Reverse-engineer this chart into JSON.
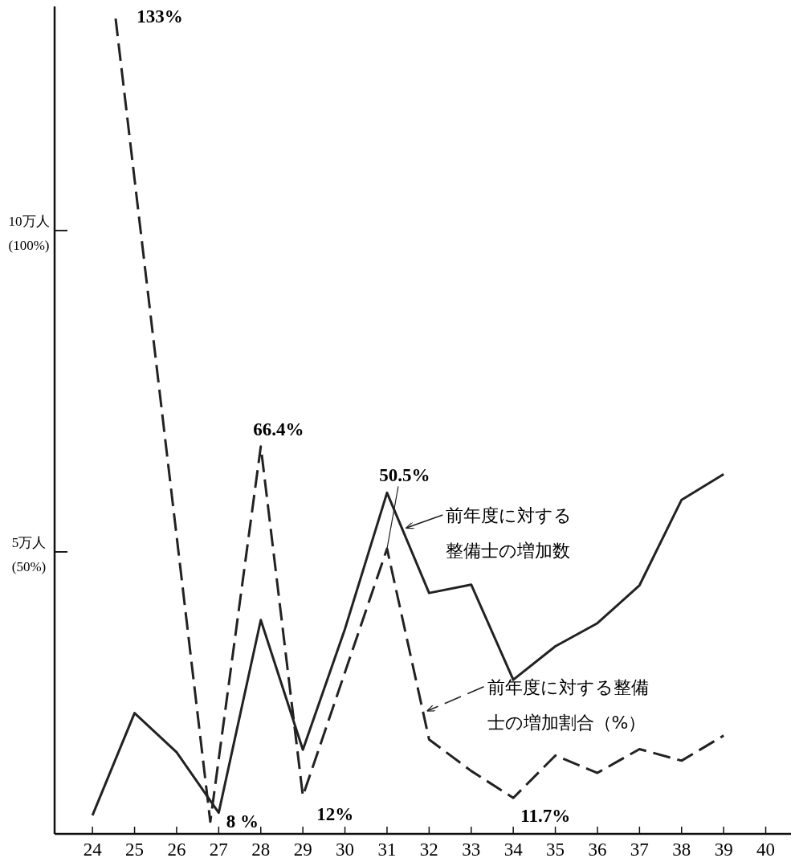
{
  "chart_data": {
    "type": "line",
    "xlim": [
      23.1,
      40.6
    ],
    "xticks": [
      24,
      25,
      26,
      27,
      28,
      29,
      30,
      31,
      32,
      33,
      34,
      35,
      36,
      37,
      38,
      39,
      40
    ],
    "ylim": [
      0.61,
      13.49
    ],
    "yticks": [
      {
        "value": 5,
        "label": "5万人"
      },
      {
        "value": 10,
        "label": "10万人"
      }
    ],
    "y2lim": [
      6.1,
      134.9
    ],
    "y2ticks": [
      {
        "value": 50,
        "label": "(50%)"
      },
      {
        "value": 100,
        "label": "(100%)"
      }
    ],
    "grid": false,
    "legend": "right",
    "series": [
      {
        "name": "前年度に対する整備士の増加数",
        "color": "#222222",
        "line_style": "solid",
        "x": [
          24,
          25,
          26,
          27,
          28,
          29,
          30,
          31,
          32,
          33,
          34,
          35,
          36,
          37,
          38,
          39
        ],
        "values": [
          0.9,
          2.49,
          1.88,
          0.94,
          3.94,
          1.92,
          3.8,
          5.92,
          4.36,
          4.49,
          3.01,
          3.53,
          3.89,
          4.48,
          5.81,
          6.21
        ]
      },
      {
        "name": "前年度に対する整備士の増加割合（%）",
        "color": "#222222",
        "line_style": "dashed",
        "axis": "y2",
        "x": [
          24.55,
          26.8,
          28,
          29,
          31,
          32,
          33,
          34,
          35,
          36,
          37,
          38,
          39
        ],
        "values": [
          133,
          8,
          66.4,
          12,
          50.5,
          20.8,
          15.9,
          11.7,
          18.3,
          15.6,
          19.3,
          17.5,
          21.4
        ],
        "value_labels": [
          "133%",
          "8 %",
          "66.4%",
          "12%",
          "50.5%",
          null,
          null,
          "11.7%",
          null,
          null,
          null,
          null,
          null
        ]
      }
    ]
  }
}
